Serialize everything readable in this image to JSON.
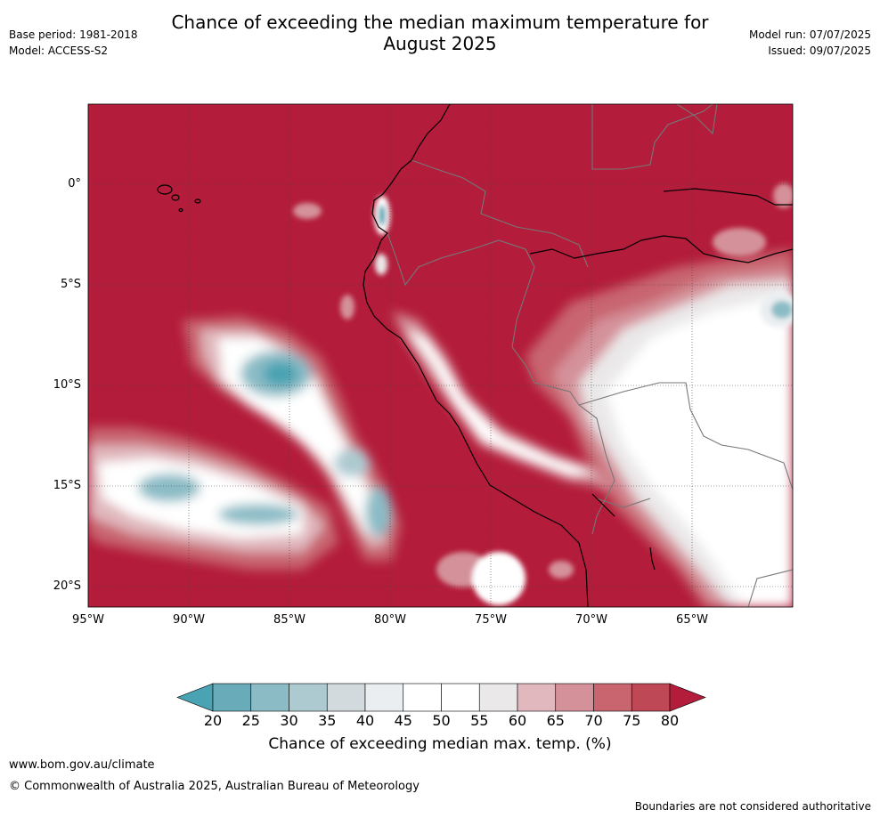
{
  "title_line1": "Chance of exceeding the median maximum temperature for",
  "title_line2": "August 2025",
  "base_period": "Base period: 1981-2018",
  "model": "Model: ACCESS-S2",
  "model_run": "Model run: 07/07/2025",
  "issued": "Issued: 09/07/2025",
  "x_ticks": [
    "95°W",
    "90°W",
    "85°W",
    "80°W",
    "75°W",
    "70°W",
    "65°W"
  ],
  "y_ticks": [
    "0°",
    "5°S",
    "10°S",
    "15°S",
    "20°S"
  ],
  "colorbar": {
    "ticks": [
      "20",
      "25",
      "30",
      "35",
      "40",
      "45",
      "50",
      "55",
      "60",
      "65",
      "70",
      "75",
      "80"
    ],
    "label": "Chance of exceeding median max. temp. (%)",
    "colors": [
      "#49a3b2",
      "#6aabba",
      "#8bbcc6",
      "#adcad1",
      "#d2dadd",
      "#eaeef0",
      "#ffffff",
      "#ffffff",
      "#eae8e9",
      "#e0b8bd",
      "#d4919a",
      "#c8656f",
      "#bf4856",
      "#b31c3a"
    ]
  },
  "footer": {
    "url": "www.bom.gov.au/climate",
    "copyright": "© Commonwealth of Australia 2025, Australian Bureau of Meteorology",
    "disclaimer": "Boundaries are not considered authoritative"
  }
}
